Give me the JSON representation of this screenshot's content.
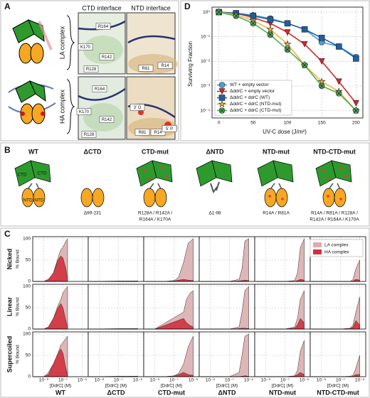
{
  "panel_a": {
    "label": "A",
    "titles": [
      "CTD interface",
      "NTD interface"
    ],
    "rows": [
      "LA complex",
      "HA complex"
    ],
    "residues": [
      [
        "R164",
        "K170",
        "R142",
        "R128"
      ],
      [
        "R81",
        "R14"
      ],
      [
        "R164",
        "K170",
        "R142",
        "R128"
      ],
      [
        "3' O",
        "R81",
        "R14",
        "5' P"
      ]
    ]
  },
  "panel_b": {
    "label": "B",
    "titles": [
      "WT",
      "ΔCTD",
      "CTD-mut",
      "ΔNTD",
      "NTD-mut",
      "NTD-CTD-mut"
    ],
    "domain_labels": [
      "CTD",
      "CTD",
      "NTD",
      "NTD"
    ],
    "captions": [
      [],
      [
        "Δ99-231"
      ],
      [
        "R128A / R142A /",
        "R164A / K170A"
      ],
      [
        "Δ1-98"
      ],
      [
        "R14A / R81A"
      ],
      [
        "R14A / R81A / R128A /",
        "R142A / R164A / K170A"
      ]
    ]
  },
  "chart_data": [
    {
      "type": "area",
      "panel_label": "C",
      "row_labels": [
        "Nicked",
        "Linear",
        "Supercoiled"
      ],
      "column_labels": [
        "WT",
        "ΔCTD",
        "CTD-mut",
        "ΔNTD",
        "NTD-mut",
        "NTD-CTD-mut"
      ],
      "ylabel": "% Bound",
      "xlabel": "[DdrC] (M)",
      "log_x": true,
      "grid": true,
      "xlim": [
        1e-10,
        3e-05
      ],
      "ylim": [
        0,
        105
      ],
      "yticks": [
        0,
        50,
        100
      ],
      "xticks": [
        {
          "value": 1e-09,
          "label": "10⁻⁹"
        },
        {
          "value": 1e-07,
          "label": "10⁻⁷"
        },
        {
          "value": 1e-05,
          "label": "10⁻⁵"
        }
      ],
      "legend": [
        {
          "name": "LA complex",
          "color": "#d9aeb0"
        },
        {
          "name": "HA complex",
          "color": "#d0313d"
        }
      ],
      "panels": [
        [
          {
            "x": [
              1e-10,
              1e-09,
              3e-09,
              1e-08,
              3e-08,
              6e-08,
              1e-07,
              2e-07,
              3e-07
            ],
            "series": [
              {
                "values": [
                  0,
                  0,
                  5,
                  20,
                  55,
                  75,
                  80,
                  95,
                  100
                ]
              },
              {
                "values": [
                  0,
                  0,
                  5,
                  20,
                  50,
                  60,
                  55,
                  30,
                  5
                ]
              }
            ]
          },
          {
            "x": [
              1e-10,
              1e-07,
              1e-05
            ],
            "series": [
              {
                "values": [
                  0,
                  1,
                  1
                ]
              },
              {
                "values": [
                  0,
                  0,
                  1
                ]
              }
            ]
          },
          {
            "x": [
              1e-10,
              1e-08,
              1e-07,
              3e-07,
              1e-06,
              3e-06,
              1e-05
            ],
            "series": [
              {
                "values": [
                  0,
                  0,
                  2,
                  10,
                  45,
                  90,
                  100
                ]
              },
              {
                "values": [
                  0,
                  0,
                  1,
                  3,
                  5,
                  3,
                  2
                ]
              }
            ]
          },
          {
            "x": [
              1e-10,
              1e-07,
              1e-06,
              2e-06,
              4e-06,
              1e-05
            ],
            "series": [
              {
                "values": [
                  0,
                  0,
                  5,
                  30,
                  95,
                  100
                ]
              },
              {
                "values": [
                  0,
                  0,
                  1,
                  2,
                  3,
                  2
                ]
              }
            ]
          },
          {
            "x": [
              1e-10,
              1e-07,
              1e-06,
              2e-06,
              4e-06,
              1e-05
            ],
            "series": [
              {
                "values": [
                  0,
                  0,
                  2,
                  20,
                  80,
                  100
                ]
              },
              {
                "values": [
                  0,
                  0,
                  0,
                  2,
                  5,
                  3
                ]
              }
            ]
          },
          {
            "x": [
              1e-10,
              1e-07,
              1e-06,
              2e-06,
              4e-06,
              1e-05
            ],
            "series": [
              {
                "values": [
                  0,
                  0,
                  0,
                  5,
                  30,
                  50
                ]
              },
              {
                "values": [
                  0,
                  0,
                  0,
                  1,
                  5,
                  3
                ]
              }
            ]
          }
        ],
        [
          {
            "x": [
              1e-10,
              1e-09,
              3e-09,
              1e-08,
              3e-08,
              6e-08,
              1e-07,
              2e-07,
              3e-07
            ],
            "series": [
              {
                "values": [
                  0,
                  0,
                  5,
                  25,
                  55,
                  70,
                  85,
                  95,
                  100
                ]
              },
              {
                "values": [
                  0,
                  0,
                  5,
                  25,
                  50,
                  60,
                  50,
                  20,
                  5
                ]
              }
            ]
          },
          {
            "x": [
              1e-10,
              1e-07,
              1e-05
            ],
            "series": [
              {
                "values": [
                  0,
                  1,
                  1
                ]
              },
              {
                "values": [
                  0,
                  0,
                  1
                ]
              }
            ]
          },
          {
            "x": [
              1e-10,
              1e-09,
              1e-06,
              2e-06,
              5e-06,
              1e-05
            ],
            "series": [
              {
                "values": [
                  0,
                  0,
                  40,
                  70,
                  85,
                  90
                ]
              },
              {
                "values": [
                  0,
                  0,
                  25,
                  15,
                  8,
                  5
                ]
              }
            ]
          },
          {
            "x": [
              1e-10,
              1e-07,
              1e-06,
              2e-06,
              4e-06,
              1e-05
            ],
            "series": [
              {
                "values": [
                  0,
                  0,
                  5,
                  40,
                  90,
                  100
                ]
              },
              {
                "values": [
                  0,
                  0,
                  1,
                  2,
                  2,
                  1
                ]
              }
            ]
          },
          {
            "x": [
              1e-10,
              1e-07,
              1e-06,
              2e-06,
              4e-06,
              1e-05
            ],
            "series": [
              {
                "values": [
                  0,
                  0,
                  5,
                  25,
                  70,
                  90
                ]
              },
              {
                "values": [
                  0,
                  0,
                  2,
                  10,
                  25,
                  15
                ]
              }
            ]
          },
          {
            "x": [
              1e-10,
              1e-07,
              1e-06,
              2e-06,
              4e-06,
              1e-05
            ],
            "series": [
              {
                "values": [
                  0,
                  0,
                  2,
                  10,
                  40,
                  75
                ]
              },
              {
                "values": [
                  0,
                  0,
                  1,
                  5,
                  20,
                  10
                ]
              }
            ]
          }
        ],
        [
          {
            "x": [
              1e-10,
              1e-09,
              3e-09,
              1e-08,
              3e-08,
              6e-08,
              1e-07,
              2e-07,
              3e-07
            ],
            "series": [
              {
                "values": [
                  0,
                  0,
                  10,
                  30,
                  55,
                  75,
                  80,
                  90,
                  95
                ]
              },
              {
                "values": [
                  0,
                  0,
                  5,
                  30,
                  55,
                  65,
                  55,
                  20,
                  5
                ]
              }
            ]
          },
          {
            "x": [
              1e-10,
              1e-07,
              1e-05
            ],
            "series": [
              {
                "values": [
                  0,
                  1,
                  1
                ]
              },
              {
                "values": [
                  0,
                  0,
                  1
                ]
              }
            ]
          },
          {
            "x": [
              1e-10,
              1e-08,
              1e-07,
              3e-07,
              1e-06,
              3e-06,
              1e-05
            ],
            "series": [
              {
                "values": [
                  0,
                  0,
                  2,
                  8,
                  30,
                  70,
                  95
                ]
              },
              {
                "values": [
                  0,
                  0,
                  1,
                  5,
                  10,
                  5,
                  3
                ]
              }
            ]
          },
          {
            "x": [
              1e-10,
              1e-07,
              1e-06,
              2e-06,
              4e-06,
              1e-05
            ],
            "series": [
              {
                "values": [
                  0,
                  0,
                  10,
                  50,
                  95,
                  100
                ]
              },
              {
                "values": [
                  0,
                  0,
                  0,
                  1,
                  2,
                  1
                ]
              }
            ]
          },
          {
            "x": [
              1e-10,
              1e-07,
              1e-06,
              2e-06,
              4e-06,
              1e-05
            ],
            "series": [
              {
                "values": [
                  0,
                  0,
                  2,
                  15,
                  60,
                  85
                ]
              },
              {
                "values": [
                  0,
                  0,
                  1,
                  5,
                  10,
                  5
                ]
              }
            ]
          },
          {
            "x": [
              1e-10,
              1e-07,
              1e-06,
              2e-06,
              4e-06,
              1e-05
            ],
            "series": [
              {
                "values": [
                  0,
                  0,
                  1,
                  3,
                  20,
                  50
                ]
              },
              {
                "values": [
                  0,
                  0,
                  0,
                  1,
                  5,
                  5
                ]
              }
            ]
          }
        ]
      ]
    },
    {
      "type": "line",
      "panel_label": "D",
      "xlabel": "UV-C dose (J/m²)",
      "ylabel": "Surviving Fraction",
      "log_y": true,
      "grid": true,
      "legend_position": "lower left",
      "x": [
        0,
        25,
        50,
        75,
        100,
        125,
        150,
        175,
        200
      ],
      "xlim": [
        -10,
        210
      ],
      "xticks": [
        0,
        50,
        100,
        150,
        200
      ],
      "ylim": [
        5e-05,
        1.6
      ],
      "yticks": [
        {
          "value": 1,
          "label": "10⁰"
        },
        {
          "value": 0.1,
          "label": "10⁻¹"
        },
        {
          "value": 0.01,
          "label": "10⁻²"
        },
        {
          "value": 0.001,
          "label": "10⁻³"
        },
        {
          "value": 0.0001,
          "label": "10⁻⁴"
        }
      ],
      "series": [
        {
          "name": "WT + empty vector",
          "color": "#4a9fd4",
          "marker": "circle",
          "values": [
            1,
            0.9,
            0.75,
            0.55,
            0.35,
            0.2,
            0.06,
            0.04,
            0.015
          ]
        },
        {
          "name": "ΔddrC + empty vector",
          "color": "#d62728",
          "marker": "triangle",
          "values": [
            1,
            0.9,
            0.6,
            0.35,
            0.15,
            0.05,
            0.01,
            0.0015,
            0.0002
          ]
        },
        {
          "name": "ΔddrC + ddrC (WT)",
          "color": "#1f5f9f",
          "marker": "square",
          "values": [
            1,
            0.9,
            0.7,
            0.5,
            0.35,
            0.2,
            0.09,
            0.04,
            0.013
          ]
        },
        {
          "name": "ΔddrC + ddrC (NTD-mut)",
          "color": "#f5b041",
          "marker": "star",
          "values": [
            1,
            0.8,
            0.45,
            0.2,
            0.05,
            0.007,
            0.0015,
            0.0006,
            0.0001
          ]
        },
        {
          "name": "ΔddrC + ddrC (CTD-mut)",
          "color": "#4caf50",
          "marker": "cross",
          "values": [
            1,
            0.7,
            0.35,
            0.12,
            0.03,
            0.007,
            0.001,
            0.0005,
            0.0001
          ]
        }
      ]
    }
  ]
}
